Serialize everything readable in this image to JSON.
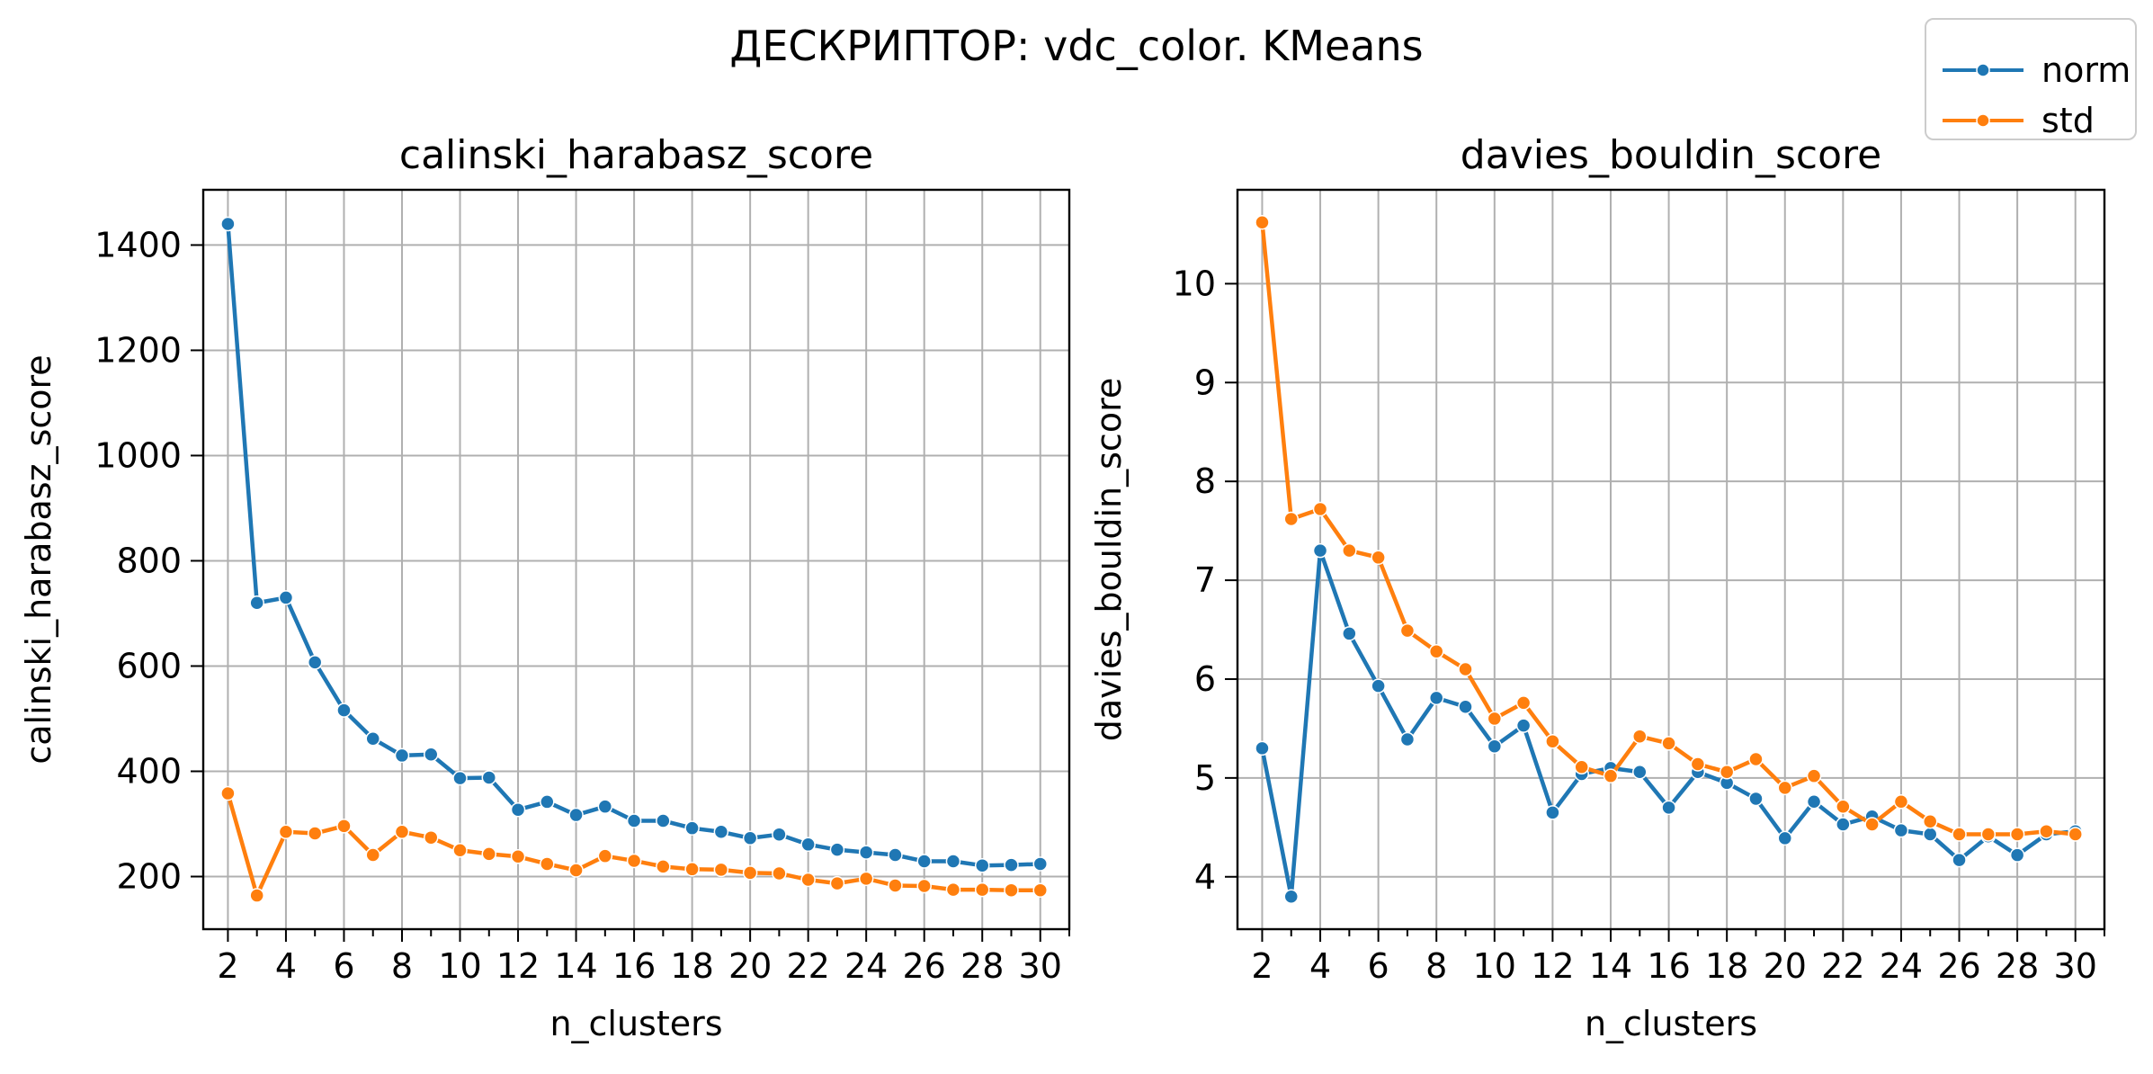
{
  "figure": {
    "title": "ДЕСКРИПТОР: vdc_color. KMeans",
    "legend": [
      {
        "name": "norm",
        "color": "#1f77b4"
      },
      {
        "name": "std",
        "color": "#ff7f0e"
      }
    ]
  },
  "chart_data": [
    {
      "type": "line",
      "title": "calinski_harabasz_score",
      "xlabel": "n_clusters",
      "ylabel": "calinski_harabasz_score",
      "xlim": [
        1.15,
        31
      ],
      "ylim": [
        100,
        1505
      ],
      "xticks": [
        2,
        4,
        6,
        8,
        10,
        12,
        14,
        16,
        18,
        20,
        22,
        24,
        26,
        28,
        30
      ],
      "yticks": [
        200,
        400,
        600,
        800,
        1000,
        1200,
        1400
      ],
      "grid": true,
      "x": [
        2,
        3,
        4,
        5,
        6,
        7,
        8,
        9,
        10,
        11,
        12,
        13,
        14,
        15,
        16,
        17,
        18,
        19,
        20,
        21,
        22,
        23,
        24,
        25,
        26,
        27,
        28,
        29,
        30
      ],
      "series": [
        {
          "name": "norm",
          "color": "#1f77b4",
          "values": [
            1440,
            720,
            730,
            607,
            516,
            462,
            430,
            432,
            387,
            388,
            327,
            342,
            317,
            333,
            306,
            306,
            292,
            285,
            273,
            280,
            261,
            251,
            246,
            241,
            229,
            229,
            221,
            222,
            224
          ]
        },
        {
          "name": "std",
          "color": "#ff7f0e",
          "values": [
            358,
            164,
            285,
            282,
            296,
            241,
            285,
            274,
            250,
            243,
            238,
            224,
            212,
            239,
            230,
            219,
            214,
            213,
            207,
            206,
            194,
            187,
            196,
            183,
            182,
            175,
            175,
            174,
            174
          ]
        }
      ]
    },
    {
      "type": "line",
      "title": "davies_bouldin_score",
      "xlabel": "n_clusters",
      "ylabel": "davies_bouldin_score",
      "xlim": [
        1.15,
        31
      ],
      "ylim": [
        3.47,
        10.95
      ],
      "xticks": [
        2,
        4,
        6,
        8,
        10,
        12,
        14,
        16,
        18,
        20,
        22,
        24,
        26,
        28,
        30
      ],
      "yticks": [
        4,
        5,
        6,
        7,
        8,
        9,
        10
      ],
      "grid": true,
      "x": [
        2,
        3,
        4,
        5,
        6,
        7,
        8,
        9,
        10,
        11,
        12,
        13,
        14,
        15,
        16,
        17,
        18,
        19,
        20,
        21,
        22,
        23,
        24,
        25,
        26,
        27,
        28,
        29,
        30
      ],
      "series": [
        {
          "name": "norm",
          "color": "#1f77b4",
          "values": [
            5.3,
            3.8,
            7.3,
            6.46,
            5.93,
            5.39,
            5.81,
            5.72,
            5.32,
            5.53,
            4.65,
            5.04,
            5.1,
            5.06,
            4.7,
            5.06,
            4.95,
            4.79,
            4.39,
            4.76,
            4.53,
            4.61,
            4.47,
            4.43,
            4.17,
            4.41,
            4.22,
            4.43,
            4.46
          ]
        },
        {
          "name": "std",
          "color": "#ff7f0e",
          "values": [
            10.62,
            7.62,
            7.72,
            7.3,
            7.23,
            6.49,
            6.28,
            6.1,
            5.6,
            5.76,
            5.37,
            5.11,
            5.02,
            5.42,
            5.35,
            5.14,
            5.06,
            5.19,
            4.9,
            5.02,
            4.71,
            4.53,
            4.76,
            4.56,
            4.43,
            4.43,
            4.43,
            4.46,
            4.43
          ]
        }
      ]
    }
  ]
}
